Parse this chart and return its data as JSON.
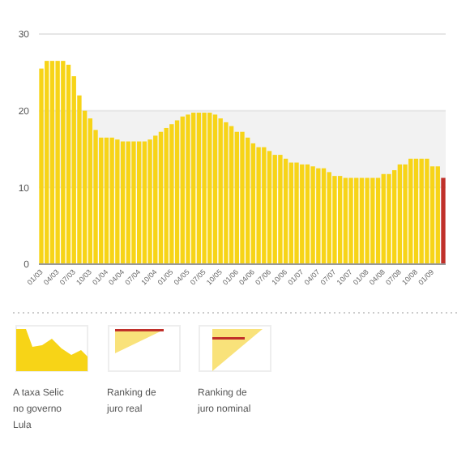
{
  "chart_data": {
    "type": "bar",
    "categories": [
      "01/03",
      null,
      null,
      "04/03",
      null,
      null,
      "07/03",
      null,
      null,
      "10/03",
      null,
      null,
      "01/04",
      null,
      null,
      "04/04",
      null,
      null,
      "07/04",
      null,
      null,
      "10/04",
      null,
      null,
      "01/05",
      null,
      null,
      "04/05",
      null,
      null,
      "07/05",
      null,
      null,
      "10/05",
      null,
      null,
      "01/06",
      null,
      null,
      "04/06",
      null,
      null,
      "07/06",
      null,
      null,
      "10/06",
      null,
      null,
      "01/07",
      null,
      null,
      "04/07",
      null,
      null,
      "07/07",
      null,
      null,
      "10/07",
      null,
      null,
      "01/08",
      null,
      null,
      "04/08",
      null,
      null,
      "07/08",
      null,
      null,
      "10/08",
      null,
      null,
      "01/09",
      null,
      null
    ],
    "values": [
      25.5,
      26.5,
      26.5,
      26.5,
      26.5,
      26,
      24.5,
      22,
      20,
      19,
      17.5,
      16.5,
      16.5,
      16.5,
      16.25,
      16,
      16,
      16,
      16,
      16,
      16.25,
      16.75,
      17.25,
      17.75,
      18.25,
      18.75,
      19.25,
      19.5,
      19.75,
      19.75,
      19.75,
      19.75,
      19.5,
      19,
      18.5,
      18,
      17.25,
      17.25,
      16.5,
      15.75,
      15.25,
      15.25,
      14.75,
      14.25,
      14.25,
      13.75,
      13.25,
      13.25,
      13,
      13,
      12.75,
      12.5,
      12.5,
      12,
      11.5,
      11.5,
      11.25,
      11.25,
      11.25,
      11.25,
      11.25,
      11.25,
      11.25,
      11.75,
      11.75,
      12.25,
      13,
      13,
      13.75,
      13.75,
      13.75,
      13.75,
      12.75,
      12.75,
      11.25
    ],
    "colors": [
      "#f7d417",
      "#f7d417",
      "#f7d417",
      "#f7d417",
      "#f7d417",
      "#f7d417",
      "#f7d417",
      "#f7d417",
      "#f7d417",
      "#f7d417",
      "#f7d417",
      "#f7d417",
      "#f7d417",
      "#f7d417",
      "#f7d417",
      "#f7d417",
      "#f7d417",
      "#f7d417",
      "#f7d417",
      "#f7d417",
      "#f7d417",
      "#f7d417",
      "#f7d417",
      "#f7d417",
      "#f7d417",
      "#f7d417",
      "#f7d417",
      "#f7d417",
      "#f7d417",
      "#f7d417",
      "#f7d417",
      "#f7d417",
      "#f7d417",
      "#f7d417",
      "#f7d417",
      "#f7d417",
      "#f7d417",
      "#f7d417",
      "#f7d417",
      "#f7d417",
      "#f7d417",
      "#f7d417",
      "#f7d417",
      "#f7d417",
      "#f7d417",
      "#f7d417",
      "#f7d417",
      "#f7d417",
      "#f7d417",
      "#f7d417",
      "#f7d417",
      "#f7d417",
      "#f7d417",
      "#f7d417",
      "#f7d417",
      "#f7d417",
      "#f7d417",
      "#f7d417",
      "#f7d417",
      "#f7d417",
      "#f7d417",
      "#f7d417",
      "#f7d417",
      "#f7d417",
      "#f7d417",
      "#f7d417",
      "#f7d417",
      "#f7d417",
      "#f7d417",
      "#f7d417",
      "#f7d417",
      "#f7d417",
      "#f7d417",
      "#f7d417",
      "#c0302a"
    ],
    "ylim": [
      0,
      30
    ],
    "yticks": [
      0,
      10,
      20,
      30
    ],
    "grid": "y",
    "bands": [
      {
        "axis": "y",
        "from": 10,
        "to": 20,
        "color": "#f2f2f2"
      }
    ],
    "annotations": [
      "A taxa Selic no governo Lula",
      "Ranking de juro real",
      "Ranking de juro nominal"
    ]
  }
}
